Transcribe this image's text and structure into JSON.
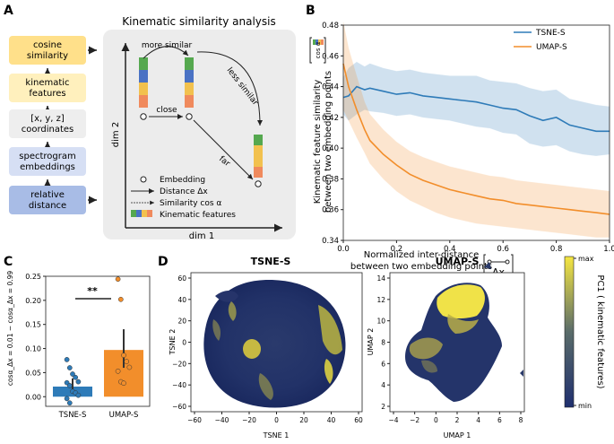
{
  "panel_letters": {
    "a": "A",
    "b": "B",
    "c": "C",
    "d": "D"
  },
  "panel_a": {
    "title": "Kinematic similarity analysis",
    "pipeline": [
      {
        "lines": [
          "cosine",
          "similarity"
        ],
        "color": "#ffe08a"
      },
      {
        "lines": [
          "kinematic",
          "features"
        ],
        "color": "#fff0bd"
      },
      {
        "lines": [
          "[x, y, z]",
          "coordinates"
        ],
        "color": "#eeeeee"
      },
      {
        "lines": [
          "spectrogram",
          "embeddings"
        ],
        "color": "#d6dff4"
      },
      {
        "lines": [
          "relative",
          "distance"
        ],
        "color": "#a8bce6"
      }
    ],
    "more_similar": "more similar",
    "less_similar": "less similar",
    "close": "close",
    "far": "far",
    "dim1": "dim 1",
    "dim2": "dim 2",
    "legend_embedding": "Embedding",
    "legend_distance": "Distance Δx",
    "legend_similarity": "Similarity cos α",
    "legend_features": "Kinematic features",
    "bar_colors": [
      "#55a84f",
      "#4a72c4",
      "#f2c14e",
      "#f08a5d"
    ]
  },
  "panel_b_labels": {
    "ylabel_line1": "Kinematic feature similarity",
    "ylabel_line2": "between two embedding points",
    "xlabel_line1": "Normalized inter-distance",
    "xlabel_line2": "between two embedding points",
    "cos_icon_text": "cos α",
    "dx_icon_text": "Δx"
  },
  "panel_c_labels": {
    "ylabel": "cosα_Δx = 0.01 − cosα_Δx = 0.99",
    "significance": "**"
  },
  "panel_d_labels": {
    "tsne_title": "TSNE-S",
    "umap_title": "UMAP-S",
    "tsne_xlabel": "TSNE 1",
    "tsne_ylabel": "TSNE 2",
    "umap_xlabel": "UMAP 1",
    "umap_ylabel": "UMAP 2",
    "tsne_xticks": [
      "−60",
      "−40",
      "−20",
      "0",
      "20",
      "40",
      "60"
    ],
    "tsne_yticks": [
      "60",
      "40",
      "20",
      "0",
      "−20",
      "−40",
      "−60"
    ],
    "umap_xticks": [
      "−4",
      "−2",
      "0",
      "2",
      "4",
      "6",
      "8"
    ],
    "umap_yticks": [
      "14",
      "12",
      "10",
      "8",
      "6",
      "4",
      "2"
    ],
    "colorbar_label": "PC1 ( kinematic features)",
    "colorbar_max": "max",
    "colorbar_min": "min",
    "colors": {
      "low": "#1f2f6e",
      "high": "#f5e642"
    }
  },
  "chart_data": [
    {
      "type": "line",
      "panel": "B",
      "xlim": [
        0,
        1.0
      ],
      "ylim": [
        0.34,
        0.48
      ],
      "xticks": [
        "0.0",
        "0.2",
        "0.4",
        "0.6",
        "0.8",
        "1.0"
      ],
      "yticks": [
        "0.48",
        "0.46",
        "0.44",
        "0.42",
        "0.40",
        "0.38",
        "0.36",
        "0.34"
      ],
      "legend_position": "top-right",
      "series": [
        {
          "name": "TSNE-S",
          "color": "#2e7bb8",
          "x": [
            0.0,
            0.02,
            0.05,
            0.08,
            0.1,
            0.15,
            0.2,
            0.25,
            0.3,
            0.35,
            0.4,
            0.45,
            0.5,
            0.55,
            0.6,
            0.65,
            0.7,
            0.75,
            0.8,
            0.85,
            0.9,
            0.95,
            1.0
          ],
          "y": [
            0.433,
            0.434,
            0.44,
            0.438,
            0.439,
            0.437,
            0.435,
            0.436,
            0.434,
            0.433,
            0.432,
            0.431,
            0.43,
            0.428,
            0.426,
            0.425,
            0.421,
            0.418,
            0.42,
            0.415,
            0.413,
            0.411,
            0.411
          ],
          "lower": [
            0.422,
            0.418,
            0.422,
            0.425,
            0.424,
            0.423,
            0.421,
            0.422,
            0.42,
            0.419,
            0.418,
            0.416,
            0.414,
            0.413,
            0.41,
            0.409,
            0.403,
            0.401,
            0.402,
            0.398,
            0.396,
            0.395,
            0.396
          ],
          "upper": [
            0.446,
            0.452,
            0.456,
            0.453,
            0.455,
            0.452,
            0.45,
            0.451,
            0.449,
            0.448,
            0.447,
            0.447,
            0.447,
            0.444,
            0.443,
            0.442,
            0.439,
            0.437,
            0.438,
            0.432,
            0.43,
            0.428,
            0.427
          ]
        },
        {
          "name": "UMAP-S",
          "color": "#f28e2b",
          "x": [
            0.0,
            0.02,
            0.05,
            0.08,
            0.1,
            0.15,
            0.2,
            0.25,
            0.3,
            0.35,
            0.4,
            0.45,
            0.5,
            0.55,
            0.6,
            0.65,
            0.7,
            0.75,
            0.8,
            0.85,
            0.9,
            0.95,
            1.0
          ],
          "y": [
            0.455,
            0.44,
            0.425,
            0.412,
            0.405,
            0.396,
            0.389,
            0.383,
            0.379,
            0.376,
            0.373,
            0.371,
            0.369,
            0.367,
            0.366,
            0.364,
            0.363,
            0.362,
            0.361,
            0.36,
            0.359,
            0.358,
            0.357
          ],
          "lower": [
            0.425,
            0.418,
            0.407,
            0.397,
            0.39,
            0.38,
            0.372,
            0.366,
            0.362,
            0.358,
            0.355,
            0.353,
            0.351,
            0.35,
            0.349,
            0.348,
            0.347,
            0.346,
            0.345,
            0.344,
            0.343,
            0.342,
            0.342
          ],
          "upper": [
            0.482,
            0.465,
            0.447,
            0.43,
            0.422,
            0.412,
            0.404,
            0.398,
            0.394,
            0.391,
            0.388,
            0.386,
            0.384,
            0.382,
            0.381,
            0.379,
            0.378,
            0.377,
            0.376,
            0.375,
            0.374,
            0.373,
            0.372
          ]
        }
      ]
    },
    {
      "type": "bar",
      "panel": "C",
      "categories": [
        "TSNE-S",
        "UMAP-S"
      ],
      "values": [
        0.021,
        0.097
      ],
      "err_low": [
        0.008,
        0.06
      ],
      "err_high": [
        0.038,
        0.14
      ],
      "colors": [
        "#2e7bb8",
        "#f28e2b"
      ],
      "points": [
        [
          0.077,
          0.06,
          0.047,
          0.04,
          0.031,
          0.029,
          0.023,
          0.011,
          0.008,
          0.003,
          -0.004,
          -0.013
        ],
        [
          0.244,
          0.202,
          0.086,
          0.073,
          0.061,
          0.053,
          0.031,
          0.028
        ]
      ],
      "ylim": [
        -0.02,
        0.25
      ],
      "yticks": [
        "0.25",
        "0.20",
        "0.15",
        "0.10",
        "0.05",
        "0.00"
      ]
    }
  ]
}
